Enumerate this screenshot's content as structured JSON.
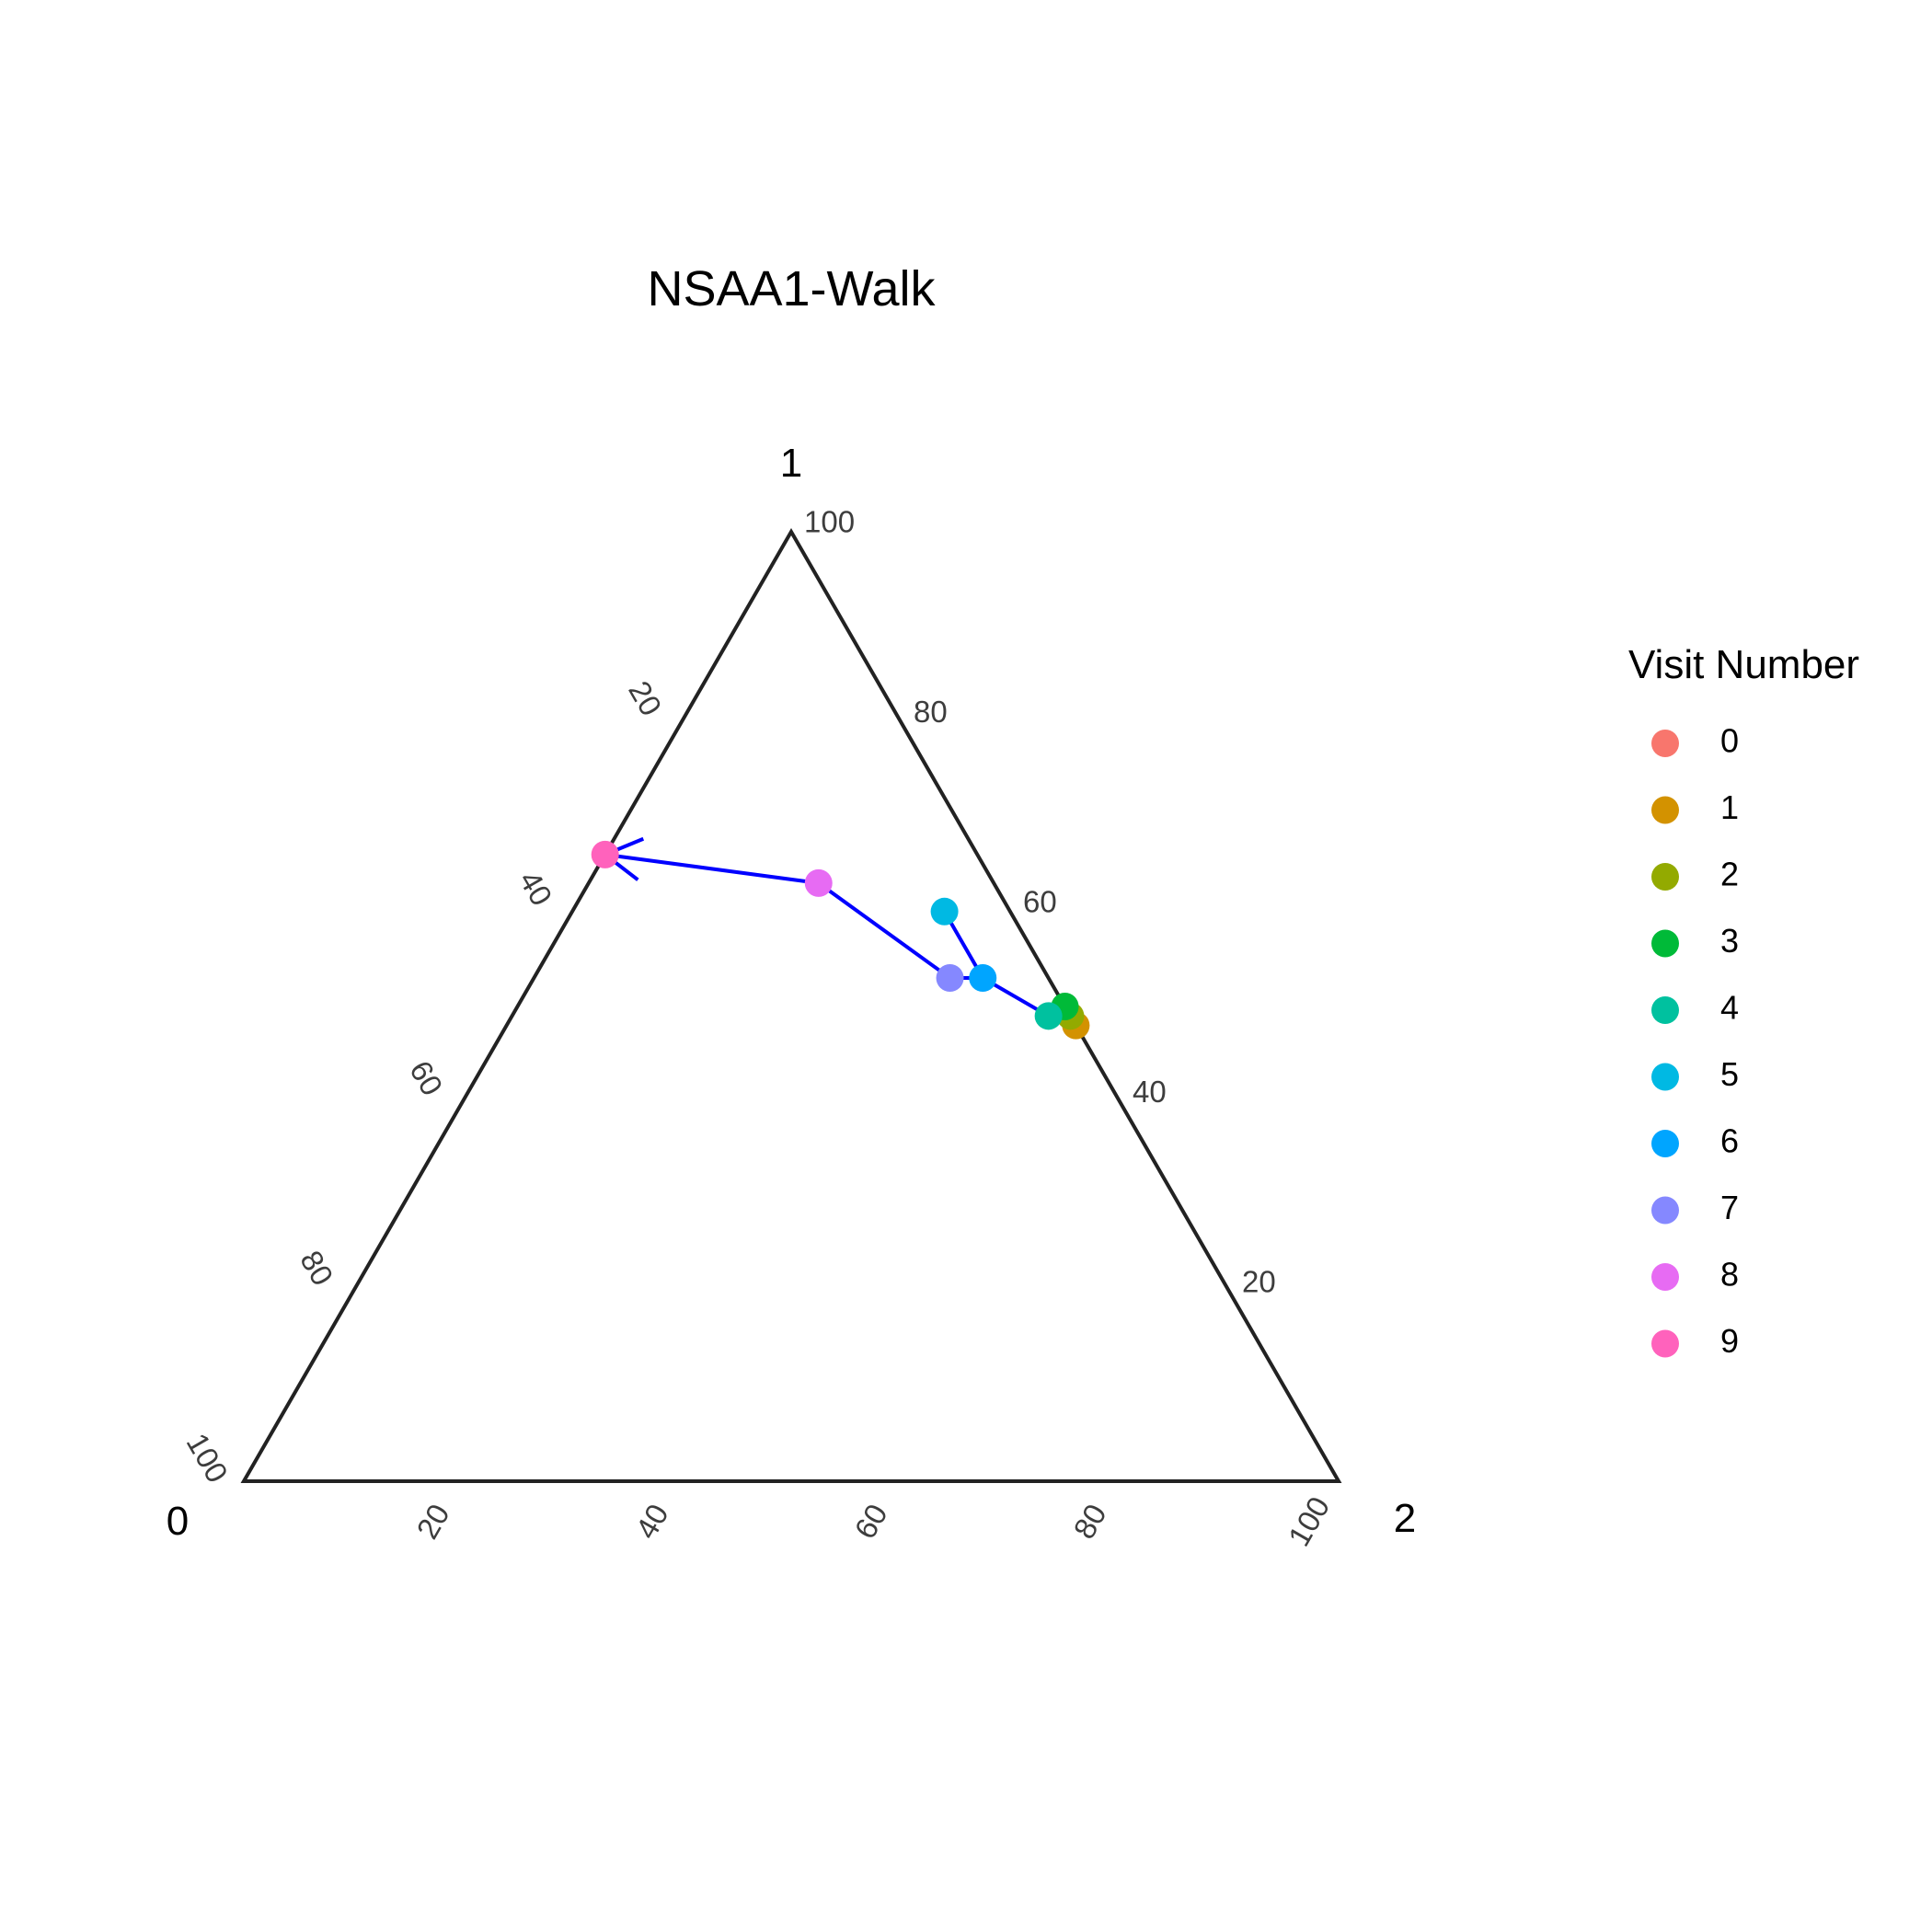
{
  "chart_data": {
    "type": "ternary-scatter",
    "title": "NSAA1-Walk",
    "axes": {
      "left": "0",
      "top": "1",
      "right": "2"
    },
    "axis_range": [
      0,
      100
    ],
    "ticks": {
      "bottom": [
        "20",
        "40",
        "60",
        "80",
        "100"
      ],
      "left": [
        "20",
        "40",
        "60",
        "80",
        "100"
      ],
      "right": [
        "20",
        "40",
        "60",
        "80",
        "100"
      ]
    },
    "legend": {
      "title": "Visit Number",
      "position": "right"
    },
    "series": [
      {
        "name": "0",
        "color": "#F8766D",
        "point": null
      },
      {
        "name": "1",
        "color": "#D39200",
        "point": {
          "p0": 0,
          "p1": 48,
          "p2": 52
        }
      },
      {
        "name": "2",
        "color": "#93AA00",
        "point": {
          "p0": 0,
          "p1": 49,
          "p2": 51
        }
      },
      {
        "name": "3",
        "color": "#00BA38",
        "point": {
          "p0": 0,
          "p1": 50,
          "p2": 50
        }
      },
      {
        "name": "4",
        "color": "#00C19F",
        "point": {
          "p0": 2,
          "p1": 49,
          "p2": 49
        }
      },
      {
        "name": "5",
        "color": "#00B9E3",
        "point": {
          "p0": 6,
          "p1": 60,
          "p2": 34
        }
      },
      {
        "name": "6",
        "color": "#00A5FF",
        "point": {
          "p0": 6,
          "p1": 53,
          "p2": 41
        }
      },
      {
        "name": "7",
        "color": "#8588FF",
        "point": {
          "p0": 9,
          "p1": 53,
          "p2": 38
        }
      },
      {
        "name": "8",
        "color": "#E76BF3",
        "point": {
          "p0": 16,
          "p1": 63,
          "p2": 21
        }
      },
      {
        "name": "9",
        "color": "#FF62BC",
        "point": {
          "p0": 34,
          "p1": 66,
          "p2": 0
        }
      }
    ],
    "path": {
      "color": "#0000FF",
      "order": [
        "3",
        "4",
        "6",
        "5",
        "6",
        "7",
        "8",
        "9"
      ],
      "arrow_end": true
    }
  }
}
